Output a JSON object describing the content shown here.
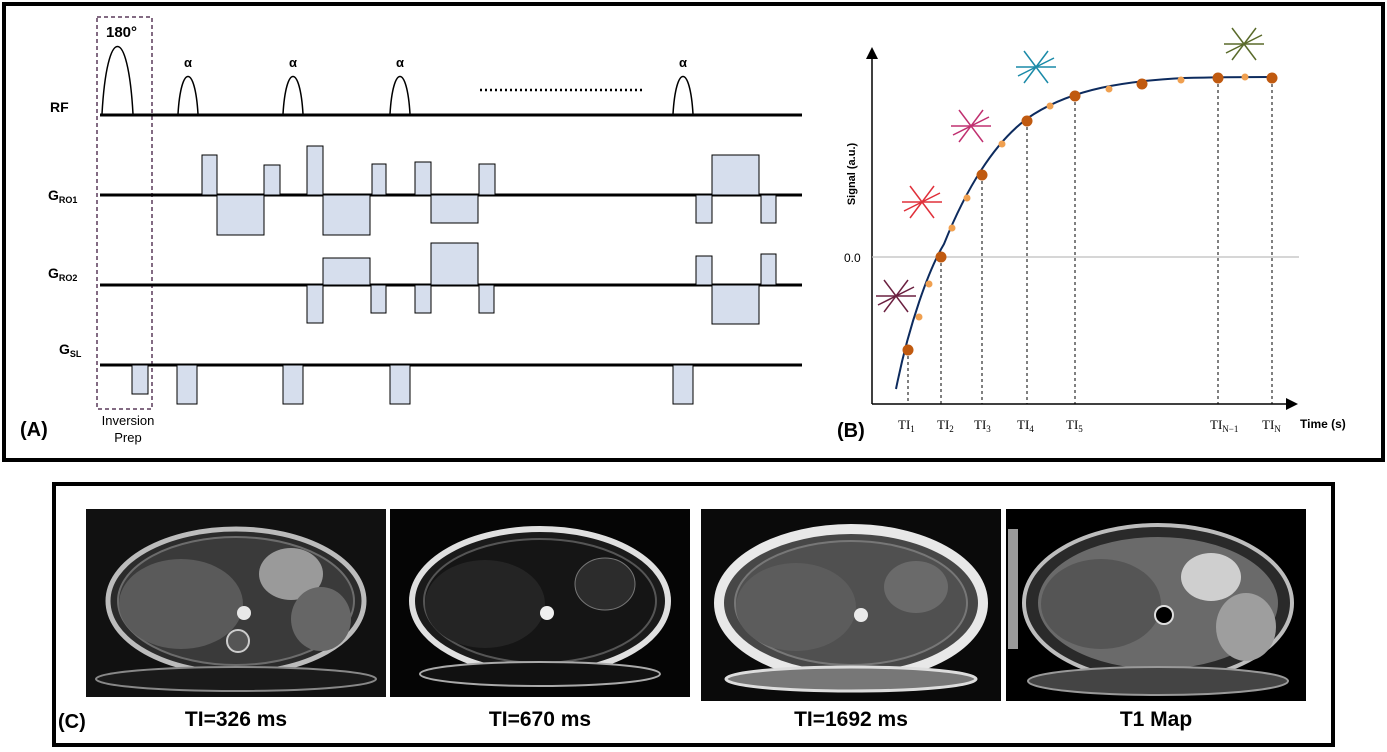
{
  "panel_a": {
    "label": "(A)",
    "pulse_180_label": "180°",
    "alpha_label": "α",
    "row_labels": {
      "rf": "RF",
      "g_ro1_main": "G",
      "g_ro1_sub": "RO1",
      "g_ro2_main": "G",
      "g_ro2_sub": "RO2",
      "g_sl_main": "G",
      "g_sl_sub": "SL"
    },
    "inversion_prep": [
      "Inversion",
      "Prep"
    ]
  },
  "panel_b": {
    "label": "(B)",
    "ylabel": "Signal (a.u.)",
    "xlabel": "Time (s)",
    "zero_tick": "0.0",
    "ti_labels": [
      {
        "main": "TI",
        "sub": "1"
      },
      {
        "main": "TI",
        "sub": "2"
      },
      {
        "main": "TI",
        "sub": "3"
      },
      {
        "main": "TI",
        "sub": "4"
      },
      {
        "main": "TI",
        "sub": "5"
      },
      {
        "main": "TI",
        "sub": "N−1"
      },
      {
        "main": "TI",
        "sub": "N"
      }
    ],
    "colors": {
      "curve": "#0d2b5e",
      "big_dot": "#c05a10",
      "small_dot": "#f0a050",
      "star_1": "#6b2040",
      "star_2": "#e0303a",
      "star_3": "#c03070",
      "star_4": "#1a8aa8",
      "star_5": "#5a6a2a"
    }
  },
  "panel_c": {
    "label": "(C)",
    "captions": [
      "TI=326 ms",
      "TI=670 ms",
      "TI=1692 ms",
      "T1 Map"
    ]
  },
  "chart_data": {
    "type": "line",
    "title": "",
    "xlabel": "Time (s)",
    "ylabel": "Signal (a.u.)",
    "y_ticks": [
      "0.0"
    ],
    "x_ticks": [
      "TI1",
      "TI2",
      "TI3",
      "TI4",
      "TI5",
      "TIN−1",
      "TIN"
    ],
    "grid": false
  }
}
